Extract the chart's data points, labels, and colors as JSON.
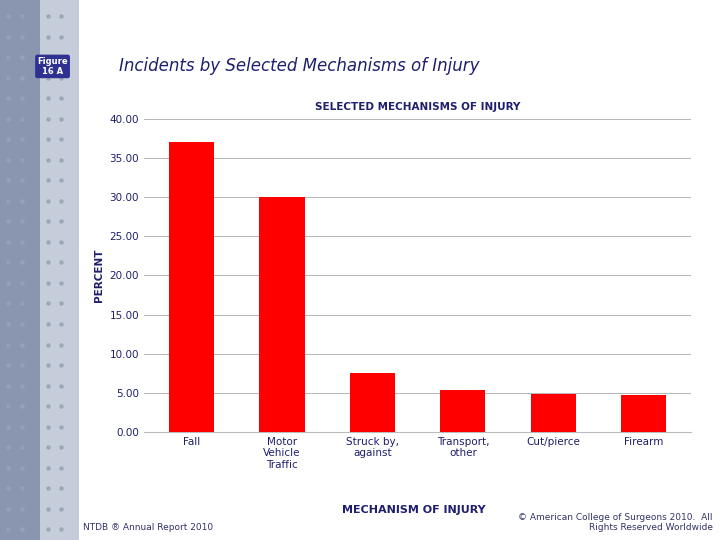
{
  "categories": [
    "Fall",
    "Motor\nVehicle\nTraffic",
    "Struck by,\nagainst",
    "Transport,\nother",
    "Cut/pierce",
    "Firearm"
  ],
  "values": [
    37.0,
    30.0,
    7.5,
    5.4,
    4.9,
    4.7
  ],
  "bar_color": "#FF0000",
  "title": "Incidents by Selected Mechanisms of Injury",
  "subplot_title": "SELECTED MECHANISMS OF INJURY",
  "xlabel": "MECHANISM OF INJURY",
  "ylabel": "PERCENT",
  "ylim": [
    0,
    40
  ],
  "yticks": [
    0.0,
    5.0,
    10.0,
    15.0,
    20.0,
    25.0,
    30.0,
    35.0,
    40.0
  ],
  "background_color": "#FFFFFF",
  "left_panel_color_dark": "#8A96B0",
  "left_panel_color_light": "#C5CCDA",
  "figure_label": "Figure\n16 A",
  "figure_label_bg": "#2E3191",
  "footer_left": "NTDB ® Annual Report 2010",
  "footer_right": "© American College of Surgeons 2010.  All\nRights Reserved Worldwide",
  "title_color": "#1F1F6E",
  "axis_label_color": "#1F1F6E",
  "tick_label_color": "#1F1F6E",
  "grid_color": "#AAAAAA",
  "dot_color": "#9AA3B5"
}
